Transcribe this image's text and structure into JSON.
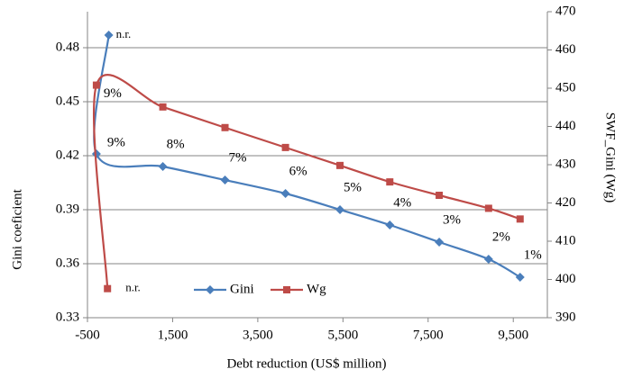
{
  "chart_data": {
    "type": "line",
    "xlabel": "Debt reduction (US$ million)",
    "ylabel": "Gini coeficient",
    "y2label": "SWF_Gini (Wg)",
    "xlim": [
      -500,
      10300
    ],
    "xticks": [
      {
        "value": -500,
        "label": "-500"
      },
      {
        "value": 1500,
        "label": "1,500"
      },
      {
        "value": 3500,
        "label": "3,500"
      },
      {
        "value": 5500,
        "label": "5,500"
      },
      {
        "value": 7500,
        "label": "7,500"
      },
      {
        "value": 9500,
        "label": "9,500"
      }
    ],
    "ylim": [
      0.33,
      0.5
    ],
    "yticks": [
      0.33,
      0.36,
      0.39,
      0.42,
      0.45,
      0.48
    ],
    "y2lim": [
      390,
      470
    ],
    "y2ticks": [
      390,
      400,
      410,
      420,
      430,
      440,
      450,
      460,
      470
    ],
    "grid": true,
    "legend": "bottom-center",
    "series": [
      {
        "name": "Gini",
        "color": "#4a7ebb",
        "marker": "diamond",
        "x": [
          0,
          -290,
          1270,
          2730,
          4150,
          5430,
          6600,
          7760,
          8920,
          9660
        ],
        "values": [
          0.487,
          0.421,
          0.414,
          0.4065,
          0.399,
          0.39,
          0.3815,
          0.372,
          0.3625,
          0.3525
        ],
        "point_labels": [
          "n.r.",
          "9%",
          "8%",
          "7%",
          "6%",
          "5%",
          "4%",
          "3%",
          "2%",
          "1%"
        ]
      },
      {
        "name": "Wg",
        "color": "#be4b48",
        "marker": "square",
        "axis": "y2",
        "x": [
          -30,
          -290,
          1270,
          2730,
          4150,
          5430,
          6600,
          7760,
          8920,
          9660
        ],
        "values": [
          397.6,
          450.8,
          445.1,
          439.7,
          434.5,
          429.8,
          425.5,
          422.0,
          418.6,
          415.8
        ],
        "point_labels": [
          "n.r.",
          "9%",
          null,
          null,
          null,
          null,
          null,
          null,
          null,
          null
        ]
      }
    ]
  }
}
